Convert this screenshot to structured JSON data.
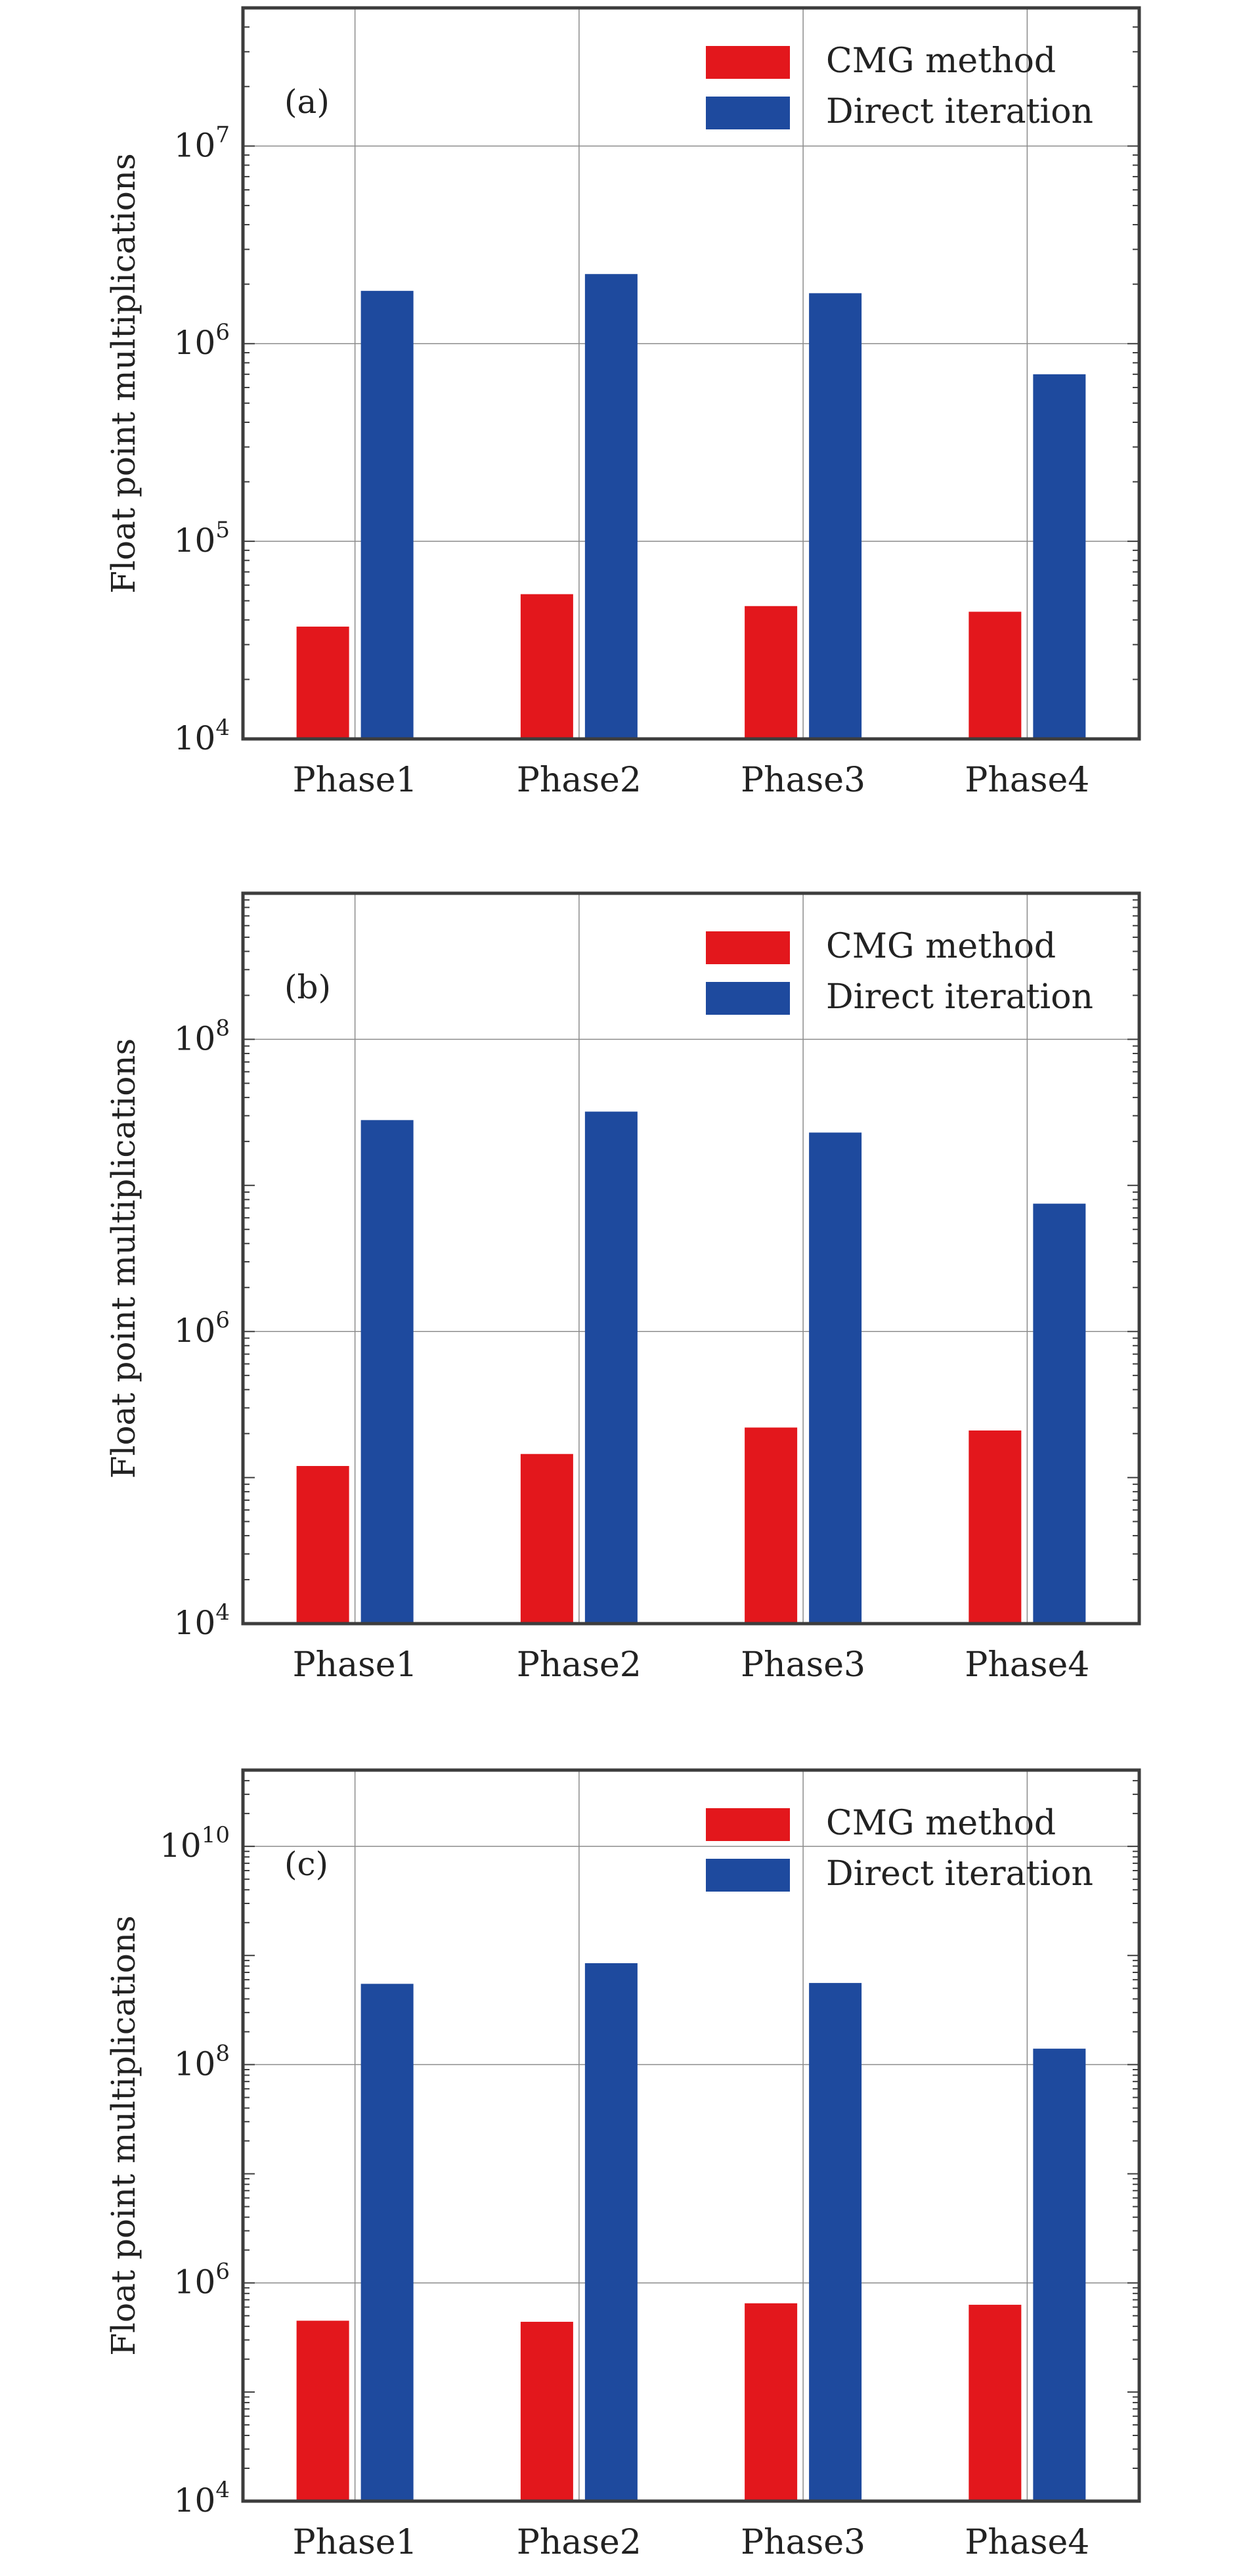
{
  "figure": {
    "ylabel": "Float point multiplications",
    "legend": [
      "CMG method",
      "Direct iteration"
    ],
    "colors": {
      "cmg": "#e3171c",
      "direct": "#1e4a9e",
      "frame": "#3d3d3d",
      "grid": "#8c8c8c",
      "text": "#222222"
    }
  },
  "chart_data": [
    {
      "type": "bar",
      "label": "(a)",
      "categories": [
        "Phase1",
        "Phase2",
        "Phase3",
        "Phase4"
      ],
      "series": [
        {
          "name": "CMG method",
          "values": [
            37000,
            54000,
            47000,
            44000
          ]
        },
        {
          "name": "Direct iteration",
          "values": [
            1850000,
            2250000,
            1800000,
            700000
          ]
        }
      ],
      "ylabel": "Float point multiplications",
      "yscale": "log",
      "ylim": [
        10000,
        50000000
      ],
      "major_ticks": [
        4,
        5,
        6,
        7
      ],
      "grid": true,
      "legend_position": "top-right"
    },
    {
      "type": "bar",
      "label": "(b)",
      "categories": [
        "Phase1",
        "Phase2",
        "Phase3",
        "Phase4"
      ],
      "series": [
        {
          "name": "CMG method",
          "values": [
            120000,
            145000,
            220000,
            210000
          ]
        },
        {
          "name": "Direct iteration",
          "values": [
            28000000,
            32000000,
            23000000,
            7500000
          ]
        }
      ],
      "ylabel": "Float point multiplications",
      "yscale": "log",
      "ylim": [
        10000,
        1000000000
      ],
      "major_ticks": [
        4,
        6,
        8
      ],
      "grid": true,
      "legend_position": "top-right"
    },
    {
      "type": "bar",
      "label": "(c)",
      "categories": [
        "Phase1",
        "Phase2",
        "Phase3",
        "Phase4"
      ],
      "series": [
        {
          "name": "CMG method",
          "values": [
            450000,
            440000,
            650000,
            630000
          ]
        },
        {
          "name": "Direct iteration",
          "values": [
            550000000,
            850000000,
            560000000,
            140000000
          ]
        }
      ],
      "ylabel": "Float point multiplications",
      "yscale": "log",
      "ylim": [
        10000,
        50000000000
      ],
      "major_ticks": [
        4,
        6,
        8,
        10
      ],
      "grid": true,
      "legend_position": "top-right"
    }
  ]
}
